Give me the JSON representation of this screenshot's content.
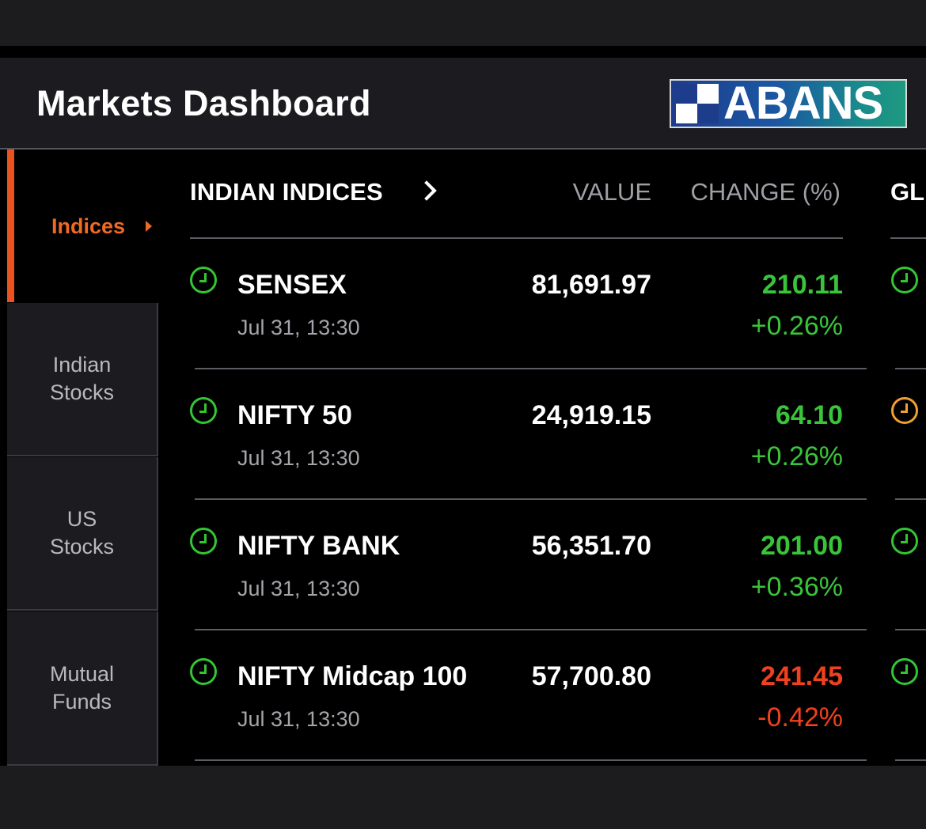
{
  "header": {
    "title": "Markets Dashboard",
    "logo_text": "ABANS"
  },
  "sidebar": {
    "items": [
      {
        "label": "Indices",
        "active": true
      },
      {
        "label": "Indian\nStocks",
        "active": false
      },
      {
        "label": "US\nStocks",
        "active": false
      },
      {
        "label": "Mutual\nFunds",
        "active": false
      }
    ]
  },
  "list": {
    "section_title": "INDIAN INDICES",
    "col_value": "VALUE",
    "col_change": "CHANGE (%)",
    "next_section_title": "GL",
    "rows": [
      {
        "name": "SENSEX",
        "time": "Jul 31, 13:30",
        "value": "81,691.97",
        "change": "210.11",
        "pct": "+0.26%",
        "direction": "up"
      },
      {
        "name": "NIFTY 50",
        "time": "Jul 31, 13:30",
        "value": "24,919.15",
        "change": "64.10",
        "pct": "+0.26%",
        "direction": "up"
      },
      {
        "name": "NIFTY BANK",
        "time": "Jul 31, 13:30",
        "value": "56,351.70",
        "change": "201.00",
        "pct": "+0.36%",
        "direction": "up"
      },
      {
        "name": "NIFTY Midcap 100",
        "time": "Jul 31, 13:30",
        "value": "57,700.80",
        "change": "241.45",
        "pct": "-0.42%",
        "direction": "down"
      }
    ]
  },
  "colors": {
    "accent": "#e8531e",
    "up": "#3ac43a",
    "down": "#f0401e",
    "status_green": "#33c633",
    "status_orange": "#f0a030"
  },
  "global_status_icons": [
    "green-clock-icon",
    "orange-clock-icon",
    "green-clock-icon",
    "green-clock-icon"
  ]
}
